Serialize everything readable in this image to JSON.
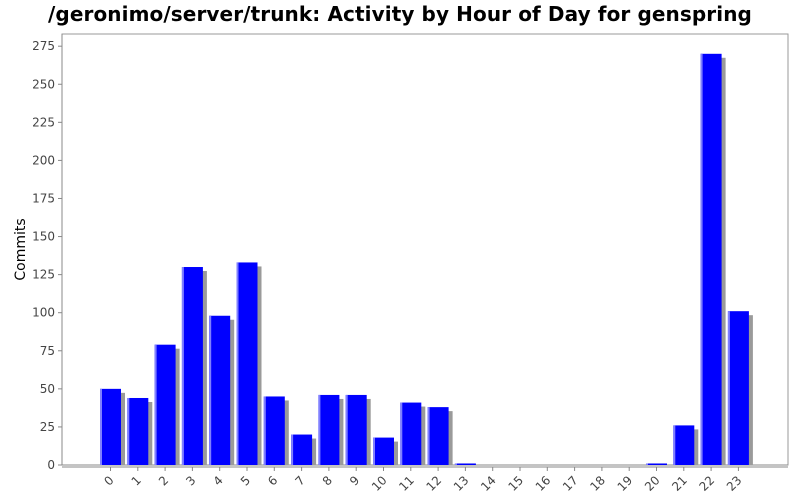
{
  "chart_data": {
    "type": "bar",
    "title": "/geronimo/server/trunk: Activity by Hour of Day for genspring",
    "xlabel": "",
    "ylabel": "Commits",
    "categories": [
      "0",
      "1",
      "2",
      "3",
      "4",
      "5",
      "6",
      "7",
      "8",
      "9",
      "10",
      "11",
      "12",
      "13",
      "14",
      "15",
      "16",
      "17",
      "18",
      "19",
      "20",
      "21",
      "22",
      "23"
    ],
    "values": [
      50,
      44,
      79,
      130,
      98,
      133,
      45,
      20,
      46,
      46,
      18,
      41,
      38,
      1,
      0,
      0,
      0,
      0,
      0,
      0,
      1,
      26,
      270,
      101
    ],
    "ylim": [
      0,
      283
    ],
    "yticks": [
      0,
      25,
      50,
      75,
      100,
      125,
      150,
      175,
      200,
      225,
      250,
      275
    ],
    "grid": false,
    "colors": {
      "bar": "#0000ff",
      "shadow": "#9a9a9a",
      "highlight": "#8080ff",
      "axis": "#888888",
      "plot_border": "#999999"
    }
  }
}
